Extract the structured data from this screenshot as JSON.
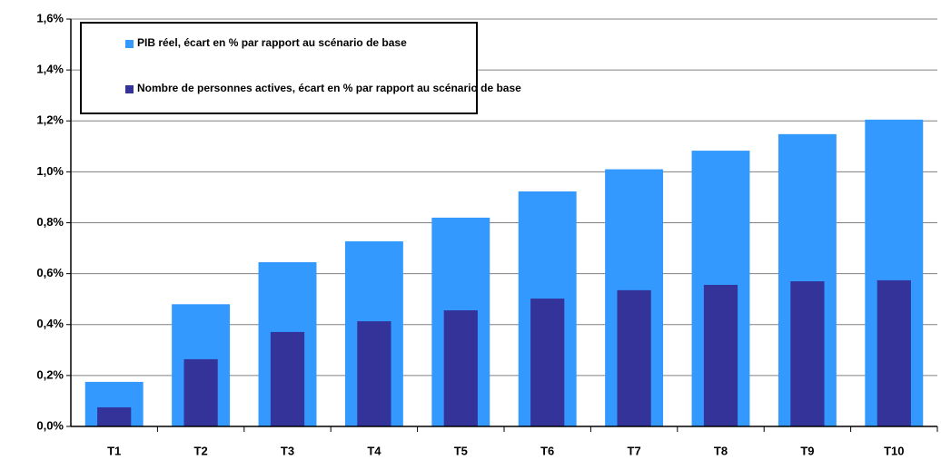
{
  "chart_data": {
    "type": "bar",
    "categories": [
      "T1",
      "T2",
      "T3",
      "T4",
      "T5",
      "T6",
      "T7",
      "T8",
      "T9",
      "T10"
    ],
    "series": [
      {
        "name": "PIB réel, écart en % par rapport au scénario de base",
        "color": "#3399ff",
        "values": [
          0.175,
          0.48,
          0.645,
          0.727,
          0.82,
          0.923,
          1.01,
          1.083,
          1.148,
          1.205
        ]
      },
      {
        "name": "Nombre de personnes actives, écart en % par rapport au scénario de base",
        "color": "#333399",
        "values": [
          0.075,
          0.264,
          0.371,
          0.413,
          0.456,
          0.502,
          0.535,
          0.556,
          0.57,
          0.574
        ]
      }
    ],
    "ylim": [
      0,
      1.6
    ],
    "yticks": [
      {
        "value": 0,
        "label": "0,0%"
      },
      {
        "value": 0.2,
        "label": "0,2%"
      },
      {
        "value": 0.4,
        "label": "0,4%"
      },
      {
        "value": 0.6,
        "label": "0,6%"
      },
      {
        "value": 0.8,
        "label": "0,8%"
      },
      {
        "value": 1.0,
        "label": "1,0%"
      },
      {
        "value": 1.2,
        "label": "1,2%"
      },
      {
        "value": 1.4,
        "label": "1,4%"
      },
      {
        "value": 1.6,
        "label": "1,6%"
      }
    ],
    "grid": true
  }
}
